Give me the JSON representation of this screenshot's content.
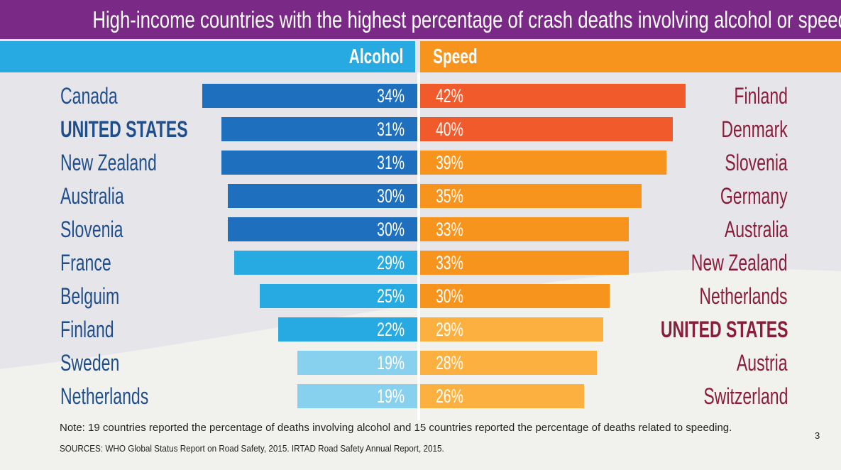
{
  "title": "High-income countries with the highest percentage of crash deaths involving alcohol or speed",
  "colors": {
    "title_bg": "#7a2a86",
    "alcohol_header": "#27aae1",
    "speed_header": "#f7941d",
    "alcohol_shades": [
      "#1f6fbf",
      "#27aae1",
      "#87d1ee"
    ],
    "speed_shades": [
      "#f15a2a",
      "#f7941d",
      "#fbb040"
    ],
    "country_left": "#1f4e8c",
    "country_right": "#8a1d3a"
  },
  "chart_data": {
    "type": "bar",
    "title": "High-income countries with the highest percentage of crash deaths involving alcohol or speed",
    "xlim": [
      0,
      50
    ],
    "series": [
      {
        "name": "Alcohol",
        "categories": [
          "Canada",
          "UNITED STATES",
          "New Zealand",
          "Australia",
          "Slovenia",
          "France",
          "Belguim",
          "Finland",
          "Sweden",
          "Netherlands"
        ],
        "values": [
          34,
          31,
          31,
          30,
          30,
          29,
          25,
          22,
          19,
          19
        ],
        "labels": [
          "34%",
          "31%",
          "31%",
          "30%",
          "30%",
          "29%",
          "25%",
          "22%",
          "19%",
          "19%"
        ],
        "shade": [
          0,
          0,
          0,
          0,
          0,
          1,
          1,
          1,
          2,
          2
        ],
        "highlight": [
          false,
          true,
          false,
          false,
          false,
          false,
          false,
          false,
          false,
          false
        ]
      },
      {
        "name": "Speed",
        "categories": [
          "Finland",
          "Denmark",
          "Slovenia",
          "Germany",
          "Australia",
          "New Zealand",
          "Netherlands",
          "UNITED STATES",
          "Austria",
          "Switzerland"
        ],
        "values": [
          42,
          40,
          39,
          35,
          33,
          33,
          30,
          29,
          28,
          26
        ],
        "labels": [
          "42%",
          "40%",
          "39%",
          "35%",
          "33%",
          "33%",
          "30%",
          "29%",
          "28%",
          "26%"
        ],
        "shade": [
          0,
          0,
          1,
          1,
          1,
          1,
          1,
          2,
          2,
          2
        ],
        "highlight": [
          false,
          false,
          false,
          false,
          false,
          false,
          false,
          true,
          false,
          false
        ]
      }
    ]
  },
  "note": "Note: 19 countries reported the percentage of deaths involving alcohol and 15 countries reported the percentage of deaths related to speeding.",
  "sources": "SOURCES: WHO Global Status Report on Road Safety, 2015. IRTAD Road Safety Annual Report, 2015.",
  "page_number": "3"
}
